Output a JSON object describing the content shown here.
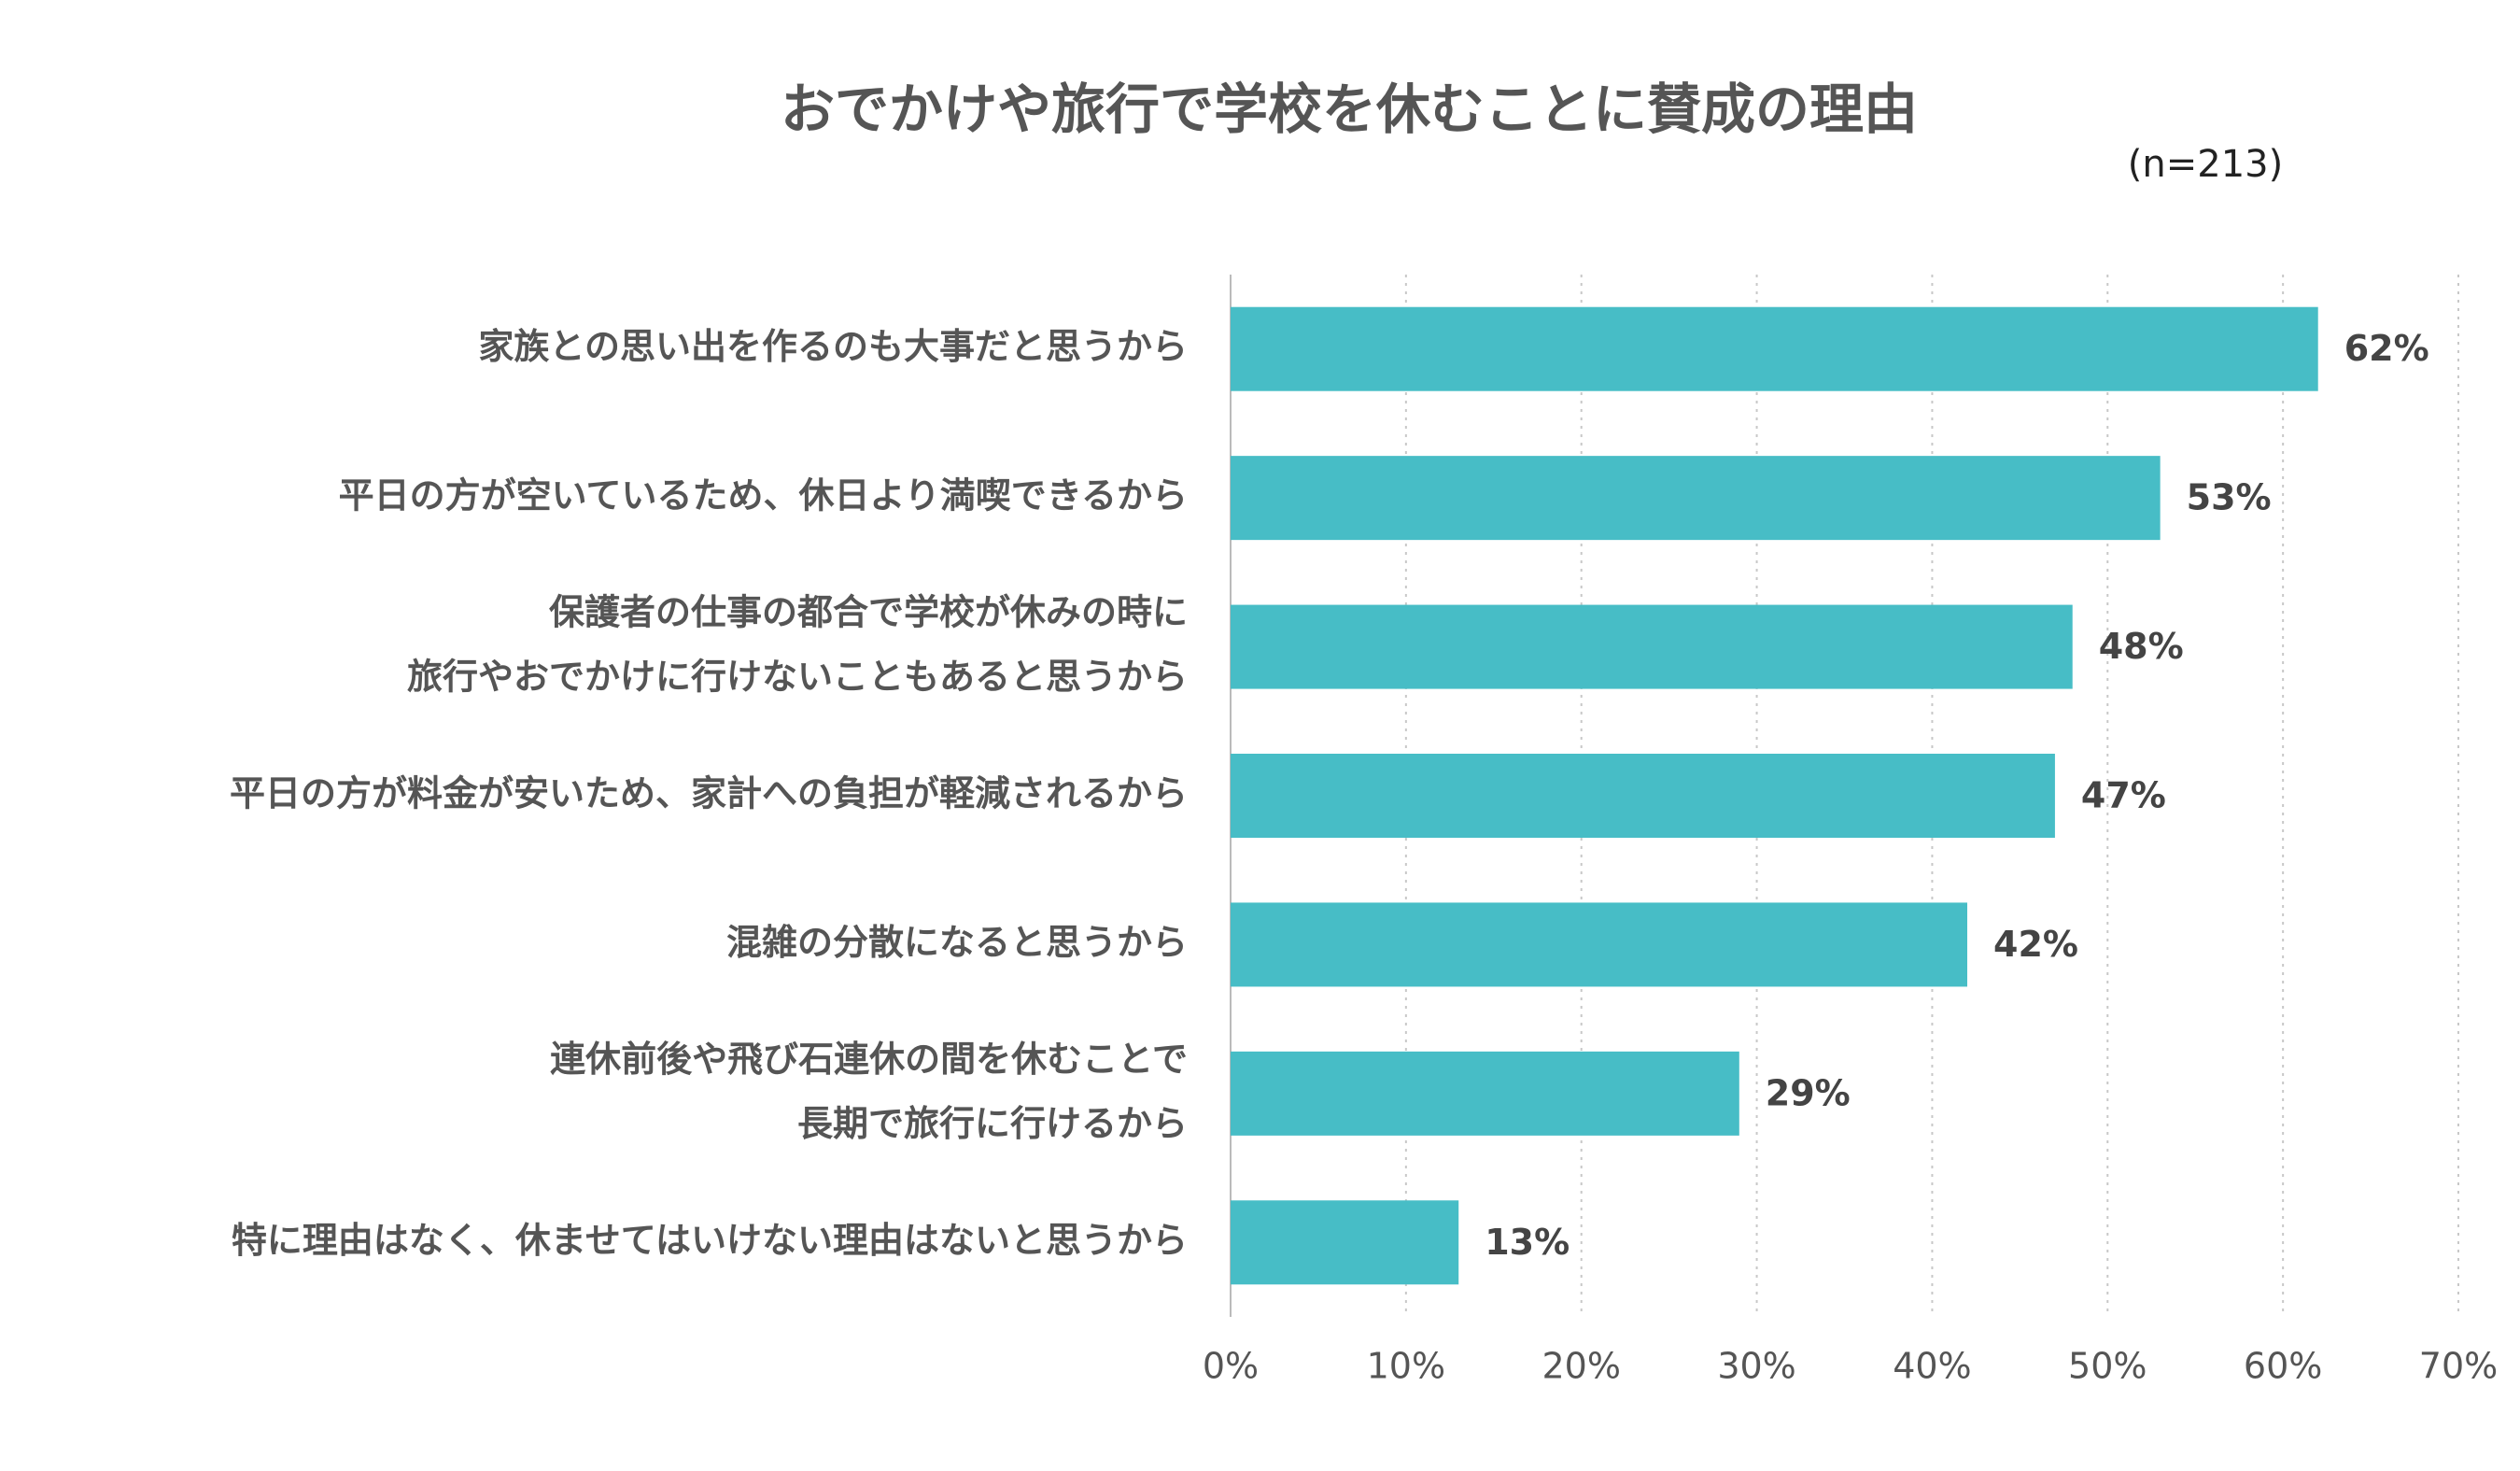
{
  "chart_data": {
    "type": "barh",
    "title": "おでかけや旅行で学校を休むことに賛成の理由",
    "note": "(n=213)",
    "categories": [
      [
        "家族との思い出を作るのも大事だと思うから"
      ],
      [
        "平日の方が空いているため、休日より満喫できるから"
      ],
      [
        "保護者の仕事の都合で学校が休みの時に",
        "旅行やおでかけに行けないこともあると思うから"
      ],
      [
        "平日の方が料金が安いため、家計への負担が軽減されるから"
      ],
      [
        "混雑の分散になると思うから"
      ],
      [
        "連休前後や飛び石連休の間を休むことで",
        "長期で旅行に行けるから"
      ],
      [
        "特に理由はなく、休ませてはいけない理由はないと思うから"
      ]
    ],
    "values": [
      62,
      53,
      48,
      47,
      42,
      29,
      13
    ],
    "value_labels": [
      "62%",
      "53%",
      "48%",
      "47%",
      "42%",
      "29%",
      "13%"
    ],
    "color": "#47bdc6",
    "xlim": [
      0,
      70
    ],
    "xticks": [
      {
        "value": 0,
        "label": "0%"
      },
      {
        "value": 10,
        "label": "10%"
      },
      {
        "value": 20,
        "label": "20%"
      },
      {
        "value": 30,
        "label": "30%"
      },
      {
        "value": 40,
        "label": "40%"
      },
      {
        "value": 50,
        "label": "50%"
      },
      {
        "value": 60,
        "label": "60%"
      },
      {
        "value": 70,
        "label": "70%"
      }
    ],
    "grid": true
  }
}
